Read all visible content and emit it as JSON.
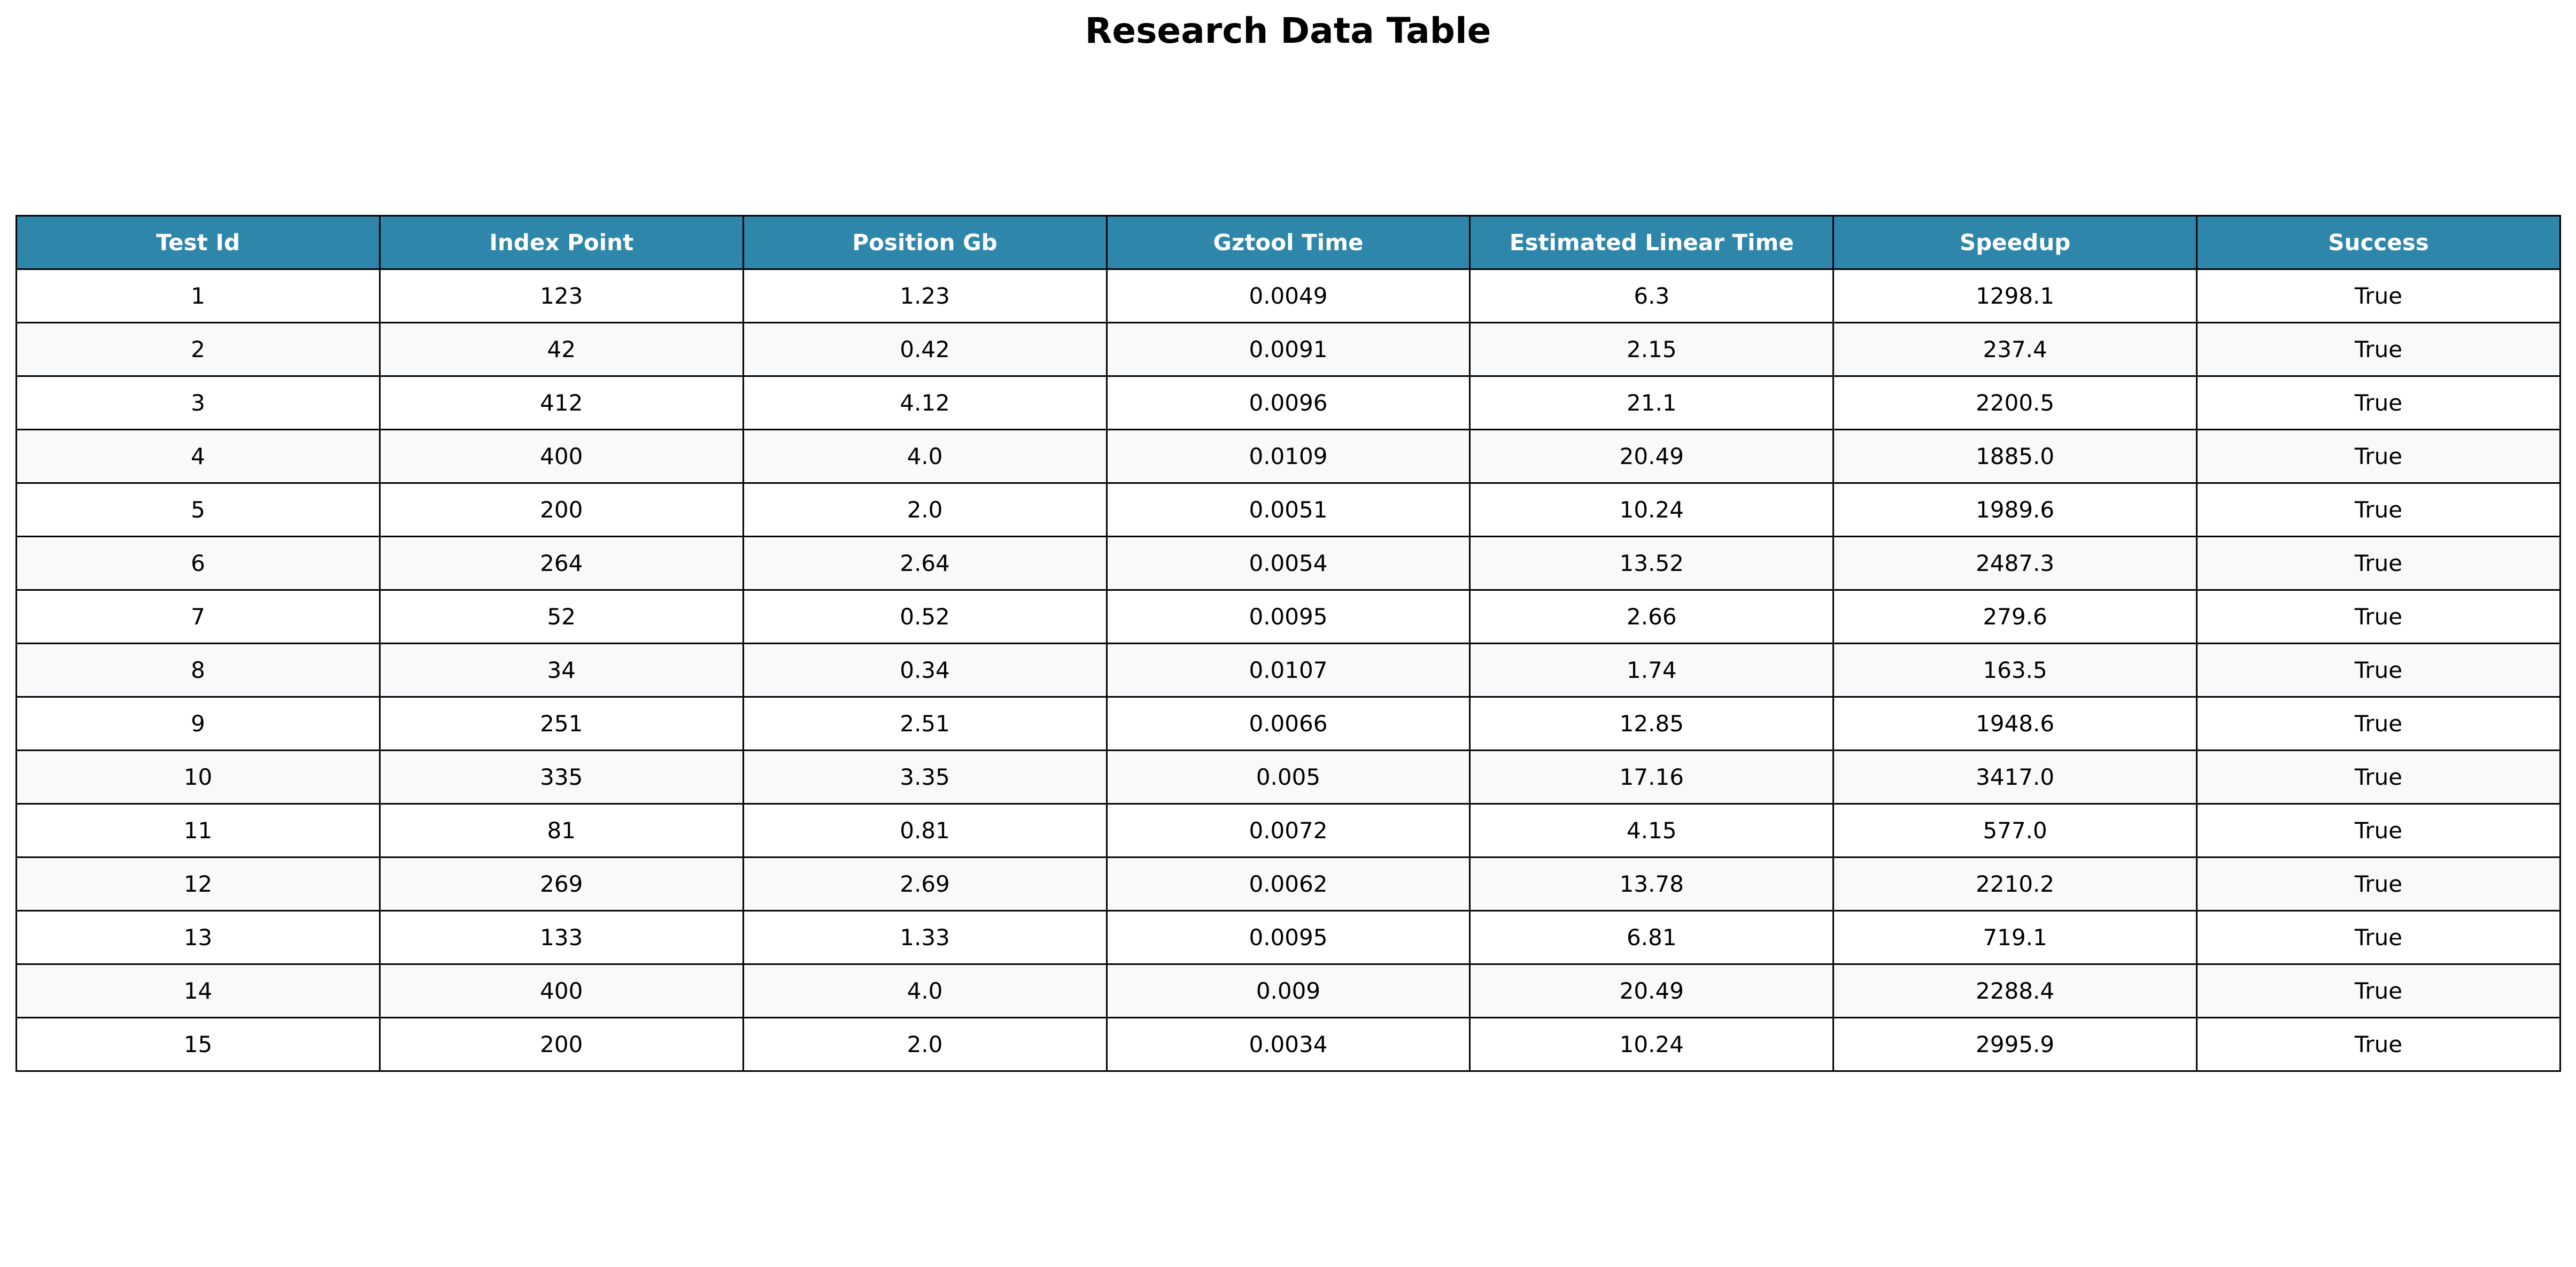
{
  "chart_data": {
    "type": "table",
    "title": "Research Data Table",
    "columns": [
      "Test Id",
      "Index Point",
      "Position Gb",
      "Gztool Time",
      "Estimated Linear Time",
      "Speedup",
      "Success"
    ],
    "rows": [
      [
        "1",
        "123",
        "1.23",
        "0.0049",
        "6.3",
        "1298.1",
        "True"
      ],
      [
        "2",
        "42",
        "0.42",
        "0.0091",
        "2.15",
        "237.4",
        "True"
      ],
      [
        "3",
        "412",
        "4.12",
        "0.0096",
        "21.1",
        "2200.5",
        "True"
      ],
      [
        "4",
        "400",
        "4.0",
        "0.0109",
        "20.49",
        "1885.0",
        "True"
      ],
      [
        "5",
        "200",
        "2.0",
        "0.0051",
        "10.24",
        "1989.6",
        "True"
      ],
      [
        "6",
        "264",
        "2.64",
        "0.0054",
        "13.52",
        "2487.3",
        "True"
      ],
      [
        "7",
        "52",
        "0.52",
        "0.0095",
        "2.66",
        "279.6",
        "True"
      ],
      [
        "8",
        "34",
        "0.34",
        "0.0107",
        "1.74",
        "163.5",
        "True"
      ],
      [
        "9",
        "251",
        "2.51",
        "0.0066",
        "12.85",
        "1948.6",
        "True"
      ],
      [
        "10",
        "335",
        "3.35",
        "0.005",
        "17.16",
        "3417.0",
        "True"
      ],
      [
        "11",
        "81",
        "0.81",
        "0.0072",
        "4.15",
        "577.0",
        "True"
      ],
      [
        "12",
        "269",
        "2.69",
        "0.0062",
        "13.78",
        "2210.2",
        "True"
      ],
      [
        "13",
        "133",
        "1.33",
        "0.0095",
        "6.81",
        "719.1",
        "True"
      ],
      [
        "14",
        "400",
        "4.0",
        "0.009",
        "20.49",
        "2288.4",
        "True"
      ],
      [
        "15",
        "200",
        "2.0",
        "0.0034",
        "10.24",
        "2995.9",
        "True"
      ]
    ]
  },
  "colors": {
    "header_background": "#2e86ab",
    "header_text": "#ffffff",
    "row_background": "#ffffff",
    "row_alt_background": "#f8f9fa",
    "border": "#000000"
  }
}
